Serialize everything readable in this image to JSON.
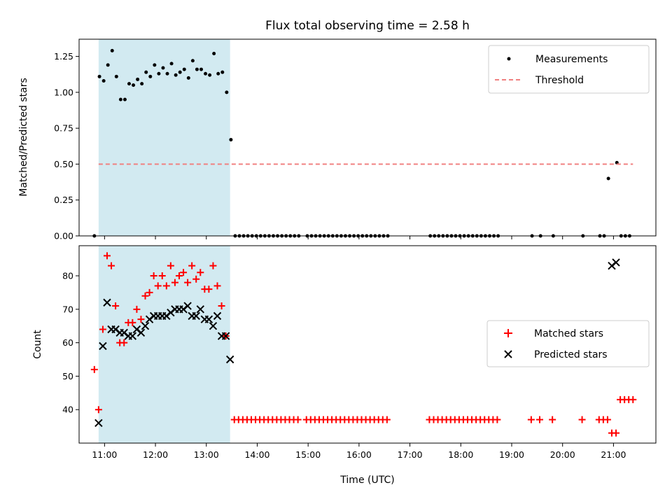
{
  "chart_data": [
    {
      "type": "scatter",
      "title": "Flux total observing time = 2.58 h",
      "xlabel": "",
      "ylabel": "Matched/Predicted stars",
      "xlim": [
        "10:30",
        "21:50"
      ],
      "ylim": [
        0,
        1.37
      ],
      "y_ticks": [
        "0.00",
        "0.25",
        "0.50",
        "0.75",
        "1.00",
        "1.25"
      ],
      "grid": false,
      "legend_position": "top-right",
      "shaded_region": {
        "x": [
          "10:53",
          "13:28"
        ],
        "color": "#add8e6"
      },
      "series": [
        {
          "name": "Measurements",
          "kind": "dots",
          "color": "#000000",
          "points": [
            [
              "10:48",
              0.0
            ],
            [
              "10:54",
              1.11
            ],
            [
              "10:59",
              1.08
            ],
            [
              "11:04",
              1.19
            ],
            [
              "11:09",
              1.29
            ],
            [
              "11:14",
              1.11
            ],
            [
              "11:19",
              0.95
            ],
            [
              "11:24",
              0.95
            ],
            [
              "11:29",
              1.06
            ],
            [
              "11:34",
              1.05
            ],
            [
              "11:39",
              1.09
            ],
            [
              "11:44",
              1.06
            ],
            [
              "11:49",
              1.14
            ],
            [
              "11:54",
              1.11
            ],
            [
              "11:59",
              1.19
            ],
            [
              "12:04",
              1.13
            ],
            [
              "12:09",
              1.17
            ],
            [
              "12:14",
              1.13
            ],
            [
              "12:19",
              1.2
            ],
            [
              "12:24",
              1.12
            ],
            [
              "12:29",
              1.14
            ],
            [
              "12:34",
              1.16
            ],
            [
              "12:39",
              1.1
            ],
            [
              "12:44",
              1.22
            ],
            [
              "12:49",
              1.16
            ],
            [
              "12:54",
              1.16
            ],
            [
              "12:59",
              1.13
            ],
            [
              "13:04",
              1.12
            ],
            [
              "13:09",
              1.27
            ],
            [
              "13:14",
              1.13
            ],
            [
              "13:19",
              1.14
            ],
            [
              "13:24",
              1.0
            ],
            [
              "13:29",
              0.67
            ],
            [
              "13:34",
              0.0
            ],
            [
              "13:39",
              0.0
            ],
            [
              "13:44",
              0.0
            ],
            [
              "13:49",
              0.0
            ],
            [
              "13:54",
              0.0
            ],
            [
              "13:59",
              0.0
            ],
            [
              "14:04",
              0.0
            ],
            [
              "14:09",
              0.0
            ],
            [
              "14:14",
              0.0
            ],
            [
              "14:19",
              0.0
            ],
            [
              "14:24",
              0.0
            ],
            [
              "14:29",
              0.0
            ],
            [
              "14:34",
              0.0
            ],
            [
              "14:39",
              0.0
            ],
            [
              "14:44",
              0.0
            ],
            [
              "14:49",
              0.0
            ],
            [
              "14:59",
              0.0
            ],
            [
              "15:04",
              0.0
            ],
            [
              "15:09",
              0.0
            ],
            [
              "15:14",
              0.0
            ],
            [
              "15:19",
              0.0
            ],
            [
              "15:24",
              0.0
            ],
            [
              "15:29",
              0.0
            ],
            [
              "15:34",
              0.0
            ],
            [
              "15:39",
              0.0
            ],
            [
              "15:44",
              0.0
            ],
            [
              "15:49",
              0.0
            ],
            [
              "15:54",
              0.0
            ],
            [
              "15:59",
              0.0
            ],
            [
              "16:04",
              0.0
            ],
            [
              "16:09",
              0.0
            ],
            [
              "16:14",
              0.0
            ],
            [
              "16:19",
              0.0
            ],
            [
              "16:24",
              0.0
            ],
            [
              "16:29",
              0.0
            ],
            [
              "16:34",
              0.0
            ],
            [
              "17:24",
              0.0
            ],
            [
              "17:29",
              0.0
            ],
            [
              "17:34",
              0.0
            ],
            [
              "17:39",
              0.0
            ],
            [
              "17:44",
              0.0
            ],
            [
              "17:49",
              0.0
            ],
            [
              "17:54",
              0.0
            ],
            [
              "17:59",
              0.0
            ],
            [
              "18:04",
              0.0
            ],
            [
              "18:09",
              0.0
            ],
            [
              "18:14",
              0.0
            ],
            [
              "18:19",
              0.0
            ],
            [
              "18:24",
              0.0
            ],
            [
              "18:29",
              0.0
            ],
            [
              "18:34",
              0.0
            ],
            [
              "18:39",
              0.0
            ],
            [
              "18:44",
              0.0
            ],
            [
              "19:24",
              0.0
            ],
            [
              "19:34",
              0.0
            ],
            [
              "19:49",
              0.0
            ],
            [
              "20:24",
              0.0
            ],
            [
              "20:44",
              0.0
            ],
            [
              "20:49",
              0.0
            ],
            [
              "20:54",
              0.4
            ],
            [
              "21:04",
              0.51
            ],
            [
              "21:09",
              0.0
            ],
            [
              "21:14",
              0.0
            ],
            [
              "21:19",
              0.0
            ]
          ]
        },
        {
          "name": "Threshold",
          "kind": "dashed-line",
          "color": "#f08080",
          "points": [
            [
              "10:53",
              0.5
            ],
            [
              "21:23",
              0.5
            ]
          ]
        }
      ]
    },
    {
      "type": "scatter",
      "title": "",
      "xlabel": "Time (UTC)",
      "ylabel": "Count",
      "xlim": [
        "10:30",
        "21:50"
      ],
      "ylim": [
        30,
        89
      ],
      "y_ticks": [
        "40",
        "50",
        "60",
        "70",
        "80"
      ],
      "x_ticks": [
        "11:00",
        "12:00",
        "13:00",
        "14:00",
        "15:00",
        "16:00",
        "17:00",
        "18:00",
        "19:00",
        "20:00",
        "21:00"
      ],
      "grid": false,
      "legend_position": "center-right",
      "shaded_region": {
        "x": [
          "10:53",
          "13:28"
        ],
        "color": "#add8e6"
      },
      "series": [
        {
          "name": "Matched stars",
          "kind": "plus",
          "color": "#ff0000",
          "points": [
            [
              "10:48",
              52
            ],
            [
              "10:53",
              40
            ],
            [
              "10:58",
              64
            ],
            [
              "11:03",
              86
            ],
            [
              "11:08",
              83
            ],
            [
              "11:13",
              71
            ],
            [
              "11:18",
              60
            ],
            [
              "11:23",
              60
            ],
            [
              "11:28",
              66
            ],
            [
              "11:33",
              66
            ],
            [
              "11:38",
              70
            ],
            [
              "11:43",
              67
            ],
            [
              "11:48",
              74
            ],
            [
              "11:53",
              75
            ],
            [
              "11:58",
              80
            ],
            [
              "12:03",
              77
            ],
            [
              "12:08",
              80
            ],
            [
              "12:13",
              77
            ],
            [
              "12:18",
              83
            ],
            [
              "12:23",
              78
            ],
            [
              "12:28",
              80
            ],
            [
              "12:33",
              81
            ],
            [
              "12:38",
              78
            ],
            [
              "12:43",
              83
            ],
            [
              "12:48",
              79
            ],
            [
              "12:53",
              81
            ],
            [
              "12:58",
              76
            ],
            [
              "13:03",
              76
            ],
            [
              "13:08",
              83
            ],
            [
              "13:13",
              77
            ],
            [
              "13:18",
              71
            ],
            [
              "13:23",
              62
            ],
            [
              "13:33",
              37
            ],
            [
              "13:38",
              37
            ],
            [
              "13:43",
              37
            ],
            [
              "13:48",
              37
            ],
            [
              "13:53",
              37
            ],
            [
              "13:58",
              37
            ],
            [
              "14:03",
              37
            ],
            [
              "14:08",
              37
            ],
            [
              "14:13",
              37
            ],
            [
              "14:18",
              37
            ],
            [
              "14:23",
              37
            ],
            [
              "14:28",
              37
            ],
            [
              "14:33",
              37
            ],
            [
              "14:38",
              37
            ],
            [
              "14:43",
              37
            ],
            [
              "14:48",
              37
            ],
            [
              "14:58",
              37
            ],
            [
              "15:03",
              37
            ],
            [
              "15:08",
              37
            ],
            [
              "15:13",
              37
            ],
            [
              "15:18",
              37
            ],
            [
              "15:23",
              37
            ],
            [
              "15:28",
              37
            ],
            [
              "15:33",
              37
            ],
            [
              "15:38",
              37
            ],
            [
              "15:43",
              37
            ],
            [
              "15:48",
              37
            ],
            [
              "15:53",
              37
            ],
            [
              "15:58",
              37
            ],
            [
              "16:03",
              37
            ],
            [
              "16:08",
              37
            ],
            [
              "16:13",
              37
            ],
            [
              "16:18",
              37
            ],
            [
              "16:23",
              37
            ],
            [
              "16:28",
              37
            ],
            [
              "16:33",
              37
            ],
            [
              "17:23",
              37
            ],
            [
              "17:28",
              37
            ],
            [
              "17:33",
              37
            ],
            [
              "17:38",
              37
            ],
            [
              "17:43",
              37
            ],
            [
              "17:48",
              37
            ],
            [
              "17:53",
              37
            ],
            [
              "17:58",
              37
            ],
            [
              "18:03",
              37
            ],
            [
              "18:08",
              37
            ],
            [
              "18:13",
              37
            ],
            [
              "18:18",
              37
            ],
            [
              "18:23",
              37
            ],
            [
              "18:28",
              37
            ],
            [
              "18:33",
              37
            ],
            [
              "18:38",
              37
            ],
            [
              "18:43",
              37
            ],
            [
              "19:23",
              37
            ],
            [
              "19:33",
              37
            ],
            [
              "19:48",
              37
            ],
            [
              "20:23",
              37
            ],
            [
              "20:43",
              37
            ],
            [
              "20:48",
              37
            ],
            [
              "20:53",
              37
            ],
            [
              "20:58",
              33
            ],
            [
              "21:03",
              33
            ],
            [
              "21:08",
              43
            ],
            [
              "21:13",
              43
            ],
            [
              "21:18",
              43
            ],
            [
              "21:23",
              43
            ]
          ]
        },
        {
          "name": "Predicted stars",
          "kind": "cross",
          "color": "#000000",
          "points": [
            [
              "10:53",
              36
            ],
            [
              "10:58",
              59
            ],
            [
              "11:03",
              72
            ],
            [
              "11:08",
              64
            ],
            [
              "11:13",
              64
            ],
            [
              "11:18",
              63
            ],
            [
              "11:23",
              63
            ],
            [
              "11:28",
              62
            ],
            [
              "11:33",
              62
            ],
            [
              "11:38",
              64
            ],
            [
              "11:43",
              63
            ],
            [
              "11:48",
              65
            ],
            [
              "11:53",
              67
            ],
            [
              "11:58",
              68
            ],
            [
              "12:03",
              68
            ],
            [
              "12:08",
              68
            ],
            [
              "12:13",
              68
            ],
            [
              "12:18",
              69
            ],
            [
              "12:23",
              70
            ],
            [
              "12:28",
              70
            ],
            [
              "12:33",
              70
            ],
            [
              "12:38",
              71
            ],
            [
              "12:43",
              68
            ],
            [
              "12:48",
              68
            ],
            [
              "12:53",
              70
            ],
            [
              "12:58",
              67
            ],
            [
              "13:03",
              67
            ],
            [
              "13:08",
              65
            ],
            [
              "13:13",
              68
            ],
            [
              "13:18",
              62
            ],
            [
              "13:23",
              62
            ],
            [
              "13:28",
              55
            ],
            [
              "20:58",
              83
            ],
            [
              "21:03",
              84
            ]
          ]
        }
      ]
    }
  ]
}
